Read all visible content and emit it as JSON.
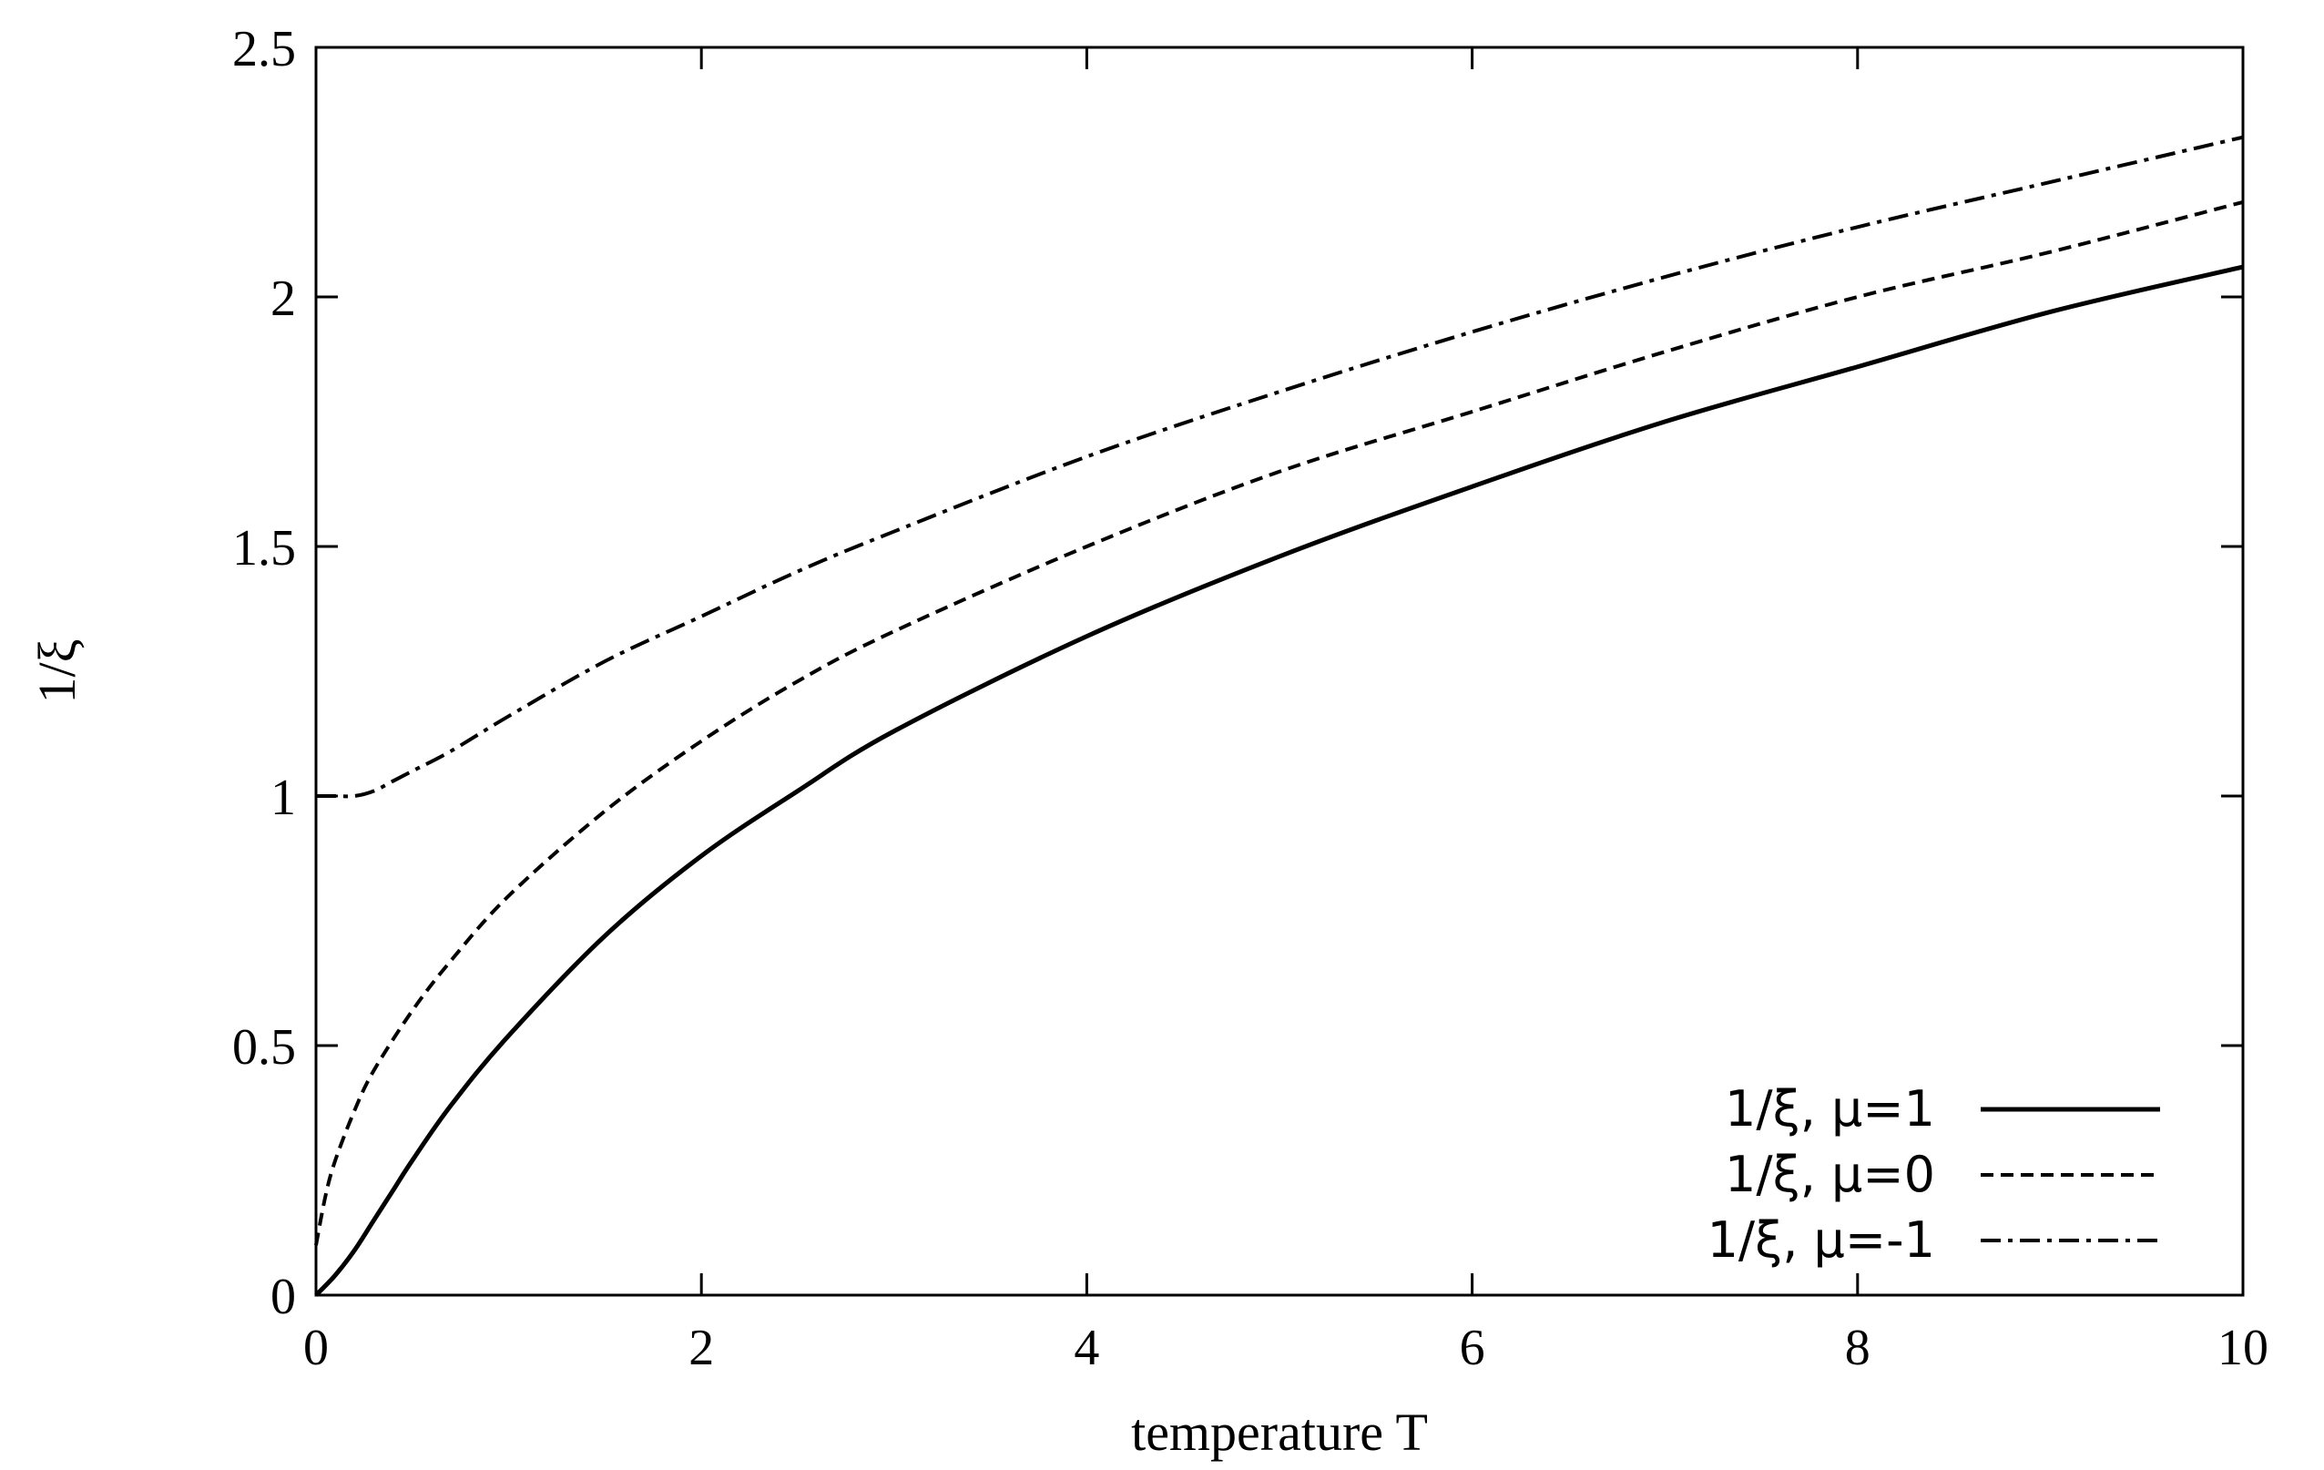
{
  "chart_data": {
    "type": "line",
    "title": "",
    "xlabel": "temperature T",
    "ylabel": "1/ξ",
    "xlim": [
      0,
      10
    ],
    "ylim": [
      0,
      2.5
    ],
    "x_ticks": [
      "0",
      "2",
      "4",
      "6",
      "8",
      "10"
    ],
    "y_ticks": [
      "0",
      "0.5",
      "1",
      "1.5",
      "2",
      "2.5"
    ],
    "grid": false,
    "legend_position": "bottom-right",
    "line_color": "#000000",
    "series": [
      {
        "name": "1/ξ, μ=1",
        "style": "solid",
        "x": [
          0,
          0.1,
          0.2,
          0.3,
          0.4,
          0.5,
          0.7,
          1,
          1.5,
          2,
          2.5,
          3,
          4,
          5,
          6,
          7,
          8,
          9,
          10
        ],
        "y": [
          0,
          0.04,
          0.09,
          0.15,
          0.21,
          0.27,
          0.38,
          0.52,
          0.72,
          0.88,
          1.01,
          1.13,
          1.32,
          1.48,
          1.62,
          1.75,
          1.86,
          1.97,
          2.06
        ]
      },
      {
        "name": "1/ξ, μ=0",
        "style": "dashed",
        "x": [
          0,
          0.05,
          0.1,
          0.2,
          0.3,
          0.5,
          0.7,
          1,
          1.5,
          2,
          2.5,
          3,
          4,
          5,
          6,
          7,
          8,
          9,
          10
        ],
        "y": [
          0.1,
          0.2,
          0.27,
          0.37,
          0.45,
          0.57,
          0.67,
          0.8,
          0.97,
          1.11,
          1.23,
          1.33,
          1.5,
          1.65,
          1.77,
          1.89,
          2.0,
          2.09,
          2.19
        ]
      },
      {
        "name": "1/ξ, μ=-1",
        "style": "dash-dot",
        "x": [
          0,
          0.1,
          0.2,
          0.3,
          0.4,
          0.5,
          0.7,
          1,
          1.5,
          2,
          2.5,
          3,
          4,
          5,
          6,
          7,
          8,
          9,
          10
        ],
        "y": [
          1.0,
          1.0,
          1.0,
          1.01,
          1.03,
          1.05,
          1.09,
          1.16,
          1.27,
          1.36,
          1.45,
          1.53,
          1.68,
          1.81,
          1.93,
          2.04,
          2.14,
          2.23,
          2.32
        ]
      }
    ]
  }
}
